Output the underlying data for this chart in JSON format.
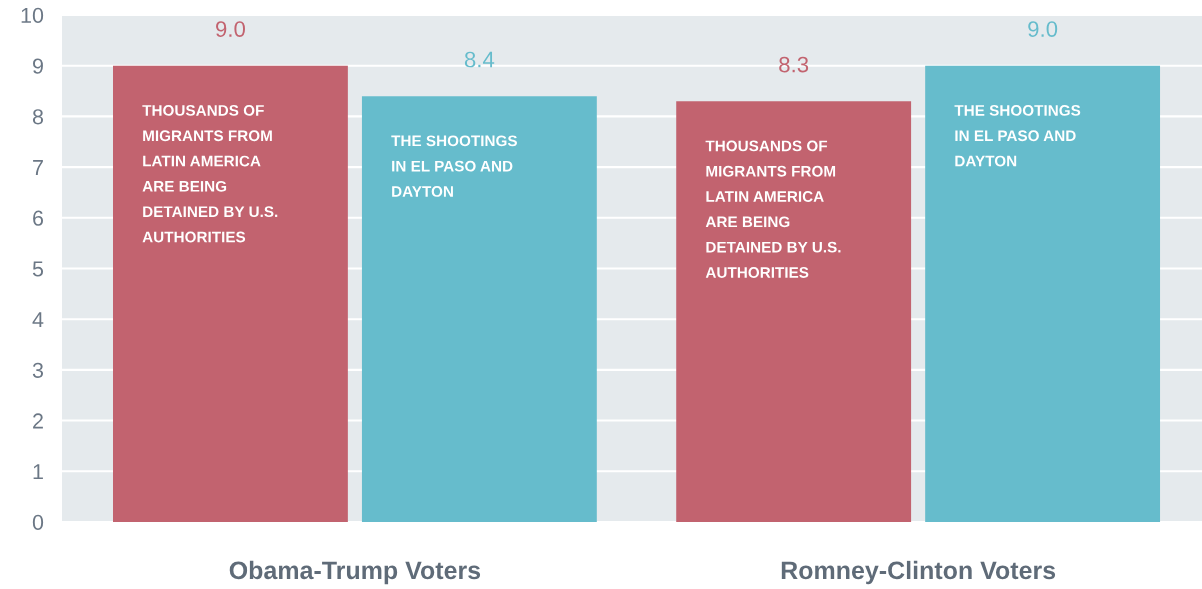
{
  "chart_data": {
    "type": "bar",
    "categories": [
      "Obama-Trump Voters",
      "Romney-Clinton Voters"
    ],
    "series": [
      {
        "name": "THOUSANDS OF\nMIGRANTS FROM\nLATIN AMERICA\nARE BEING\nDETAINED BY U.S.\nAUTHORITIES",
        "color": "#c2636f",
        "values": [
          9.0,
          8.3
        ],
        "value_labels": [
          "9.0",
          "8.3"
        ]
      },
      {
        "name": "THE SHOOTINGS\nIN EL PASO AND\nDAYTON",
        "color": "#66bccc",
        "values": [
          8.4,
          9.0
        ],
        "value_labels": [
          "8.4",
          "9.0"
        ]
      }
    ],
    "ylim": [
      0,
      10
    ],
    "yticks": [
      0,
      1,
      2,
      3,
      4,
      5,
      6,
      7,
      8,
      9,
      10
    ],
    "grid": "y"
  }
}
